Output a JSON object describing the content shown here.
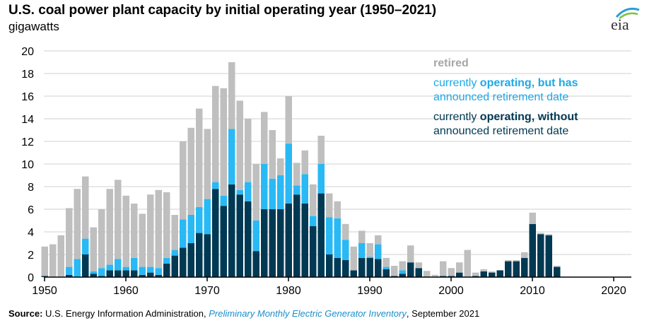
{
  "title": "U.S. coal power plant capacity by initial operating year (1950–2021)",
  "unit_label": "gigawatts",
  "logo_text": "eia",
  "source": {
    "label": "Source:",
    "text1": " U.S. Energy Information Administration, ",
    "italic": "Preliminary Monthly Electric Generator Inventory",
    "text2": ", September 2021"
  },
  "legend": {
    "retired": "retired",
    "with_date_1": "currently ",
    "with_date_bold": "operating, but has",
    "with_date_2": "announced retirement date",
    "without_date_1": "currently ",
    "without_date_bold": "operating, without",
    "without_date_2": "announced retirement date"
  },
  "colors": {
    "without": "#003953",
    "with": "#29b9f5",
    "retired": "#bfbfbf"
  },
  "chart_data": {
    "type": "bar",
    "stacked": true,
    "title": "U.S. coal power plant capacity by initial operating year (1950–2021)",
    "ylabel": "gigawatts",
    "ylim": [
      0,
      20
    ],
    "yticks": [
      0,
      2,
      4,
      6,
      8,
      10,
      12,
      14,
      16,
      18,
      20
    ],
    "xticks": [
      1950,
      1960,
      1970,
      1980,
      1990,
      2000,
      2010,
      2020
    ],
    "xlim": [
      1950,
      2021
    ],
    "grid": true,
    "legend_position": "top-right",
    "x": [
      1950,
      1951,
      1952,
      1953,
      1954,
      1955,
      1956,
      1957,
      1958,
      1959,
      1960,
      1961,
      1962,
      1963,
      1964,
      1965,
      1966,
      1967,
      1968,
      1969,
      1970,
      1971,
      1972,
      1973,
      1974,
      1975,
      1976,
      1977,
      1978,
      1979,
      1980,
      1981,
      1982,
      1983,
      1984,
      1985,
      1986,
      1987,
      1988,
      1989,
      1990,
      1991,
      1992,
      1993,
      1994,
      1995,
      1996,
      1997,
      1998,
      1999,
      2000,
      2001,
      2002,
      2003,
      2004,
      2005,
      2006,
      2007,
      2008,
      2009,
      2010,
      2011,
      2012,
      2013,
      2014,
      2015,
      2016,
      2017,
      2018,
      2019,
      2020,
      2021
    ],
    "series": [
      {
        "name": "currently operating, without announced retirement date",
        "values": [
          0.1,
          0,
          0,
          0.2,
          0,
          2.0,
          0.3,
          0.1,
          0.6,
          0.6,
          0.6,
          0.6,
          0.2,
          0.4,
          0.2,
          1.2,
          1.9,
          2.6,
          3.0,
          3.9,
          3.8,
          7.8,
          6.3,
          8.2,
          7.3,
          6.7,
          2.3,
          6.0,
          6.0,
          6.0,
          6.5,
          7.3,
          6.5,
          4.5,
          7.4,
          2.0,
          1.7,
          1.5,
          0.6,
          1.7,
          1.7,
          1.6,
          0.7,
          0.1,
          0.3,
          1.3,
          0.8,
          0.05,
          0,
          0.1,
          0.1,
          0.4,
          0,
          0.1,
          0.5,
          0.4,
          0.6,
          1.4,
          1.4,
          1.7,
          4.7,
          3.8,
          3.7,
          0.9,
          0,
          0,
          0,
          0,
          0,
          0,
          0,
          0
        ]
      },
      {
        "name": "currently operating, but has announced retirement date",
        "values": [
          0,
          0,
          0,
          0.7,
          1.6,
          1.4,
          0.2,
          0.7,
          0.5,
          1.0,
          0.3,
          1.1,
          0.7,
          0.5,
          0.6,
          0.5,
          0.5,
          2.5,
          2.5,
          2.3,
          3.1,
          0.6,
          0.9,
          4.9,
          0.4,
          1.7,
          2.7,
          4.0,
          2.7,
          3.0,
          5.3,
          0.8,
          2.6,
          0.9,
          2.6,
          3.3,
          3.5,
          1.8,
          0,
          1.3,
          0.1,
          1.3,
          0.2,
          0,
          0.3,
          0,
          0,
          0,
          0,
          0,
          0,
          0,
          0,
          0,
          0,
          0,
          0,
          0,
          0,
          0,
          0,
          0,
          0,
          0,
          0,
          0,
          0,
          0,
          0,
          0,
          0,
          0
        ]
      },
      {
        "name": "retired",
        "values": [
          2.6,
          2.9,
          3.7,
          5.2,
          6.2,
          5.5,
          3.9,
          5.2,
          6.7,
          7.0,
          6.3,
          4.8,
          4.7,
          6.4,
          6.9,
          5.8,
          3.1,
          6.9,
          7.7,
          8.7,
          6.2,
          8.5,
          9.5,
          5.9,
          7.9,
          5.6,
          5.0,
          4.6,
          4.3,
          1.5,
          4.2,
          2.0,
          2.1,
          2.8,
          2.5,
          2.1,
          1.5,
          1.4,
          2.1,
          1.1,
          1.2,
          0.8,
          0.8,
          0.9,
          0.8,
          1.5,
          0.5,
          0.5,
          0.2,
          1.3,
          0.7,
          0.9,
          2.4,
          0.3,
          0.2,
          0.1,
          0,
          0.1,
          0.1,
          0.5,
          1.0,
          0.1,
          0.1,
          0.1,
          0,
          0,
          0,
          0,
          0,
          0,
          0,
          0
        ]
      }
    ]
  }
}
